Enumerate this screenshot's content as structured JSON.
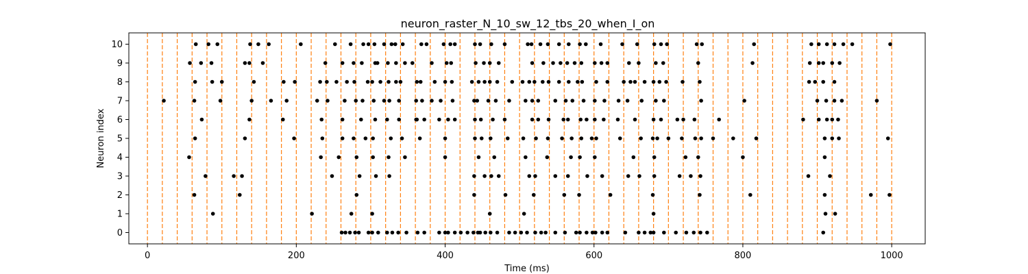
{
  "chart_data": {
    "type": "scatter",
    "title": "neuron_raster_N_10_sw_12_tbs_20_when_I_on",
    "xlabel": "Time (ms)",
    "ylabel": "Neuron index",
    "xlim": [
      -25,
      1045
    ],
    "ylim": [
      -0.6,
      10.6
    ],
    "xticks": [
      0,
      200,
      400,
      600,
      800,
      1000
    ],
    "yticks": [
      0,
      1,
      2,
      3,
      4,
      5,
      6,
      7,
      8,
      9,
      10
    ],
    "grid": false,
    "vlines": {
      "x": [
        0,
        20,
        40,
        60,
        80,
        100,
        120,
        140,
        160,
        180,
        200,
        220,
        240,
        260,
        280,
        300,
        320,
        340,
        360,
        380,
        400,
        420,
        440,
        460,
        480,
        500,
        520,
        540,
        560,
        580,
        600,
        620,
        640,
        660,
        680,
        700,
        720,
        740,
        760,
        780,
        800,
        820,
        840,
        860,
        880,
        900,
        920,
        940,
        960,
        980,
        1000
      ],
      "color": "#ff7f0e"
    },
    "marker_color": "#000000",
    "series": [
      {
        "neuron": 0,
        "x": [
          261,
          266,
          272,
          279,
          284,
          297,
          302,
          310,
          322,
          329,
          337,
          348,
          363,
          372,
          392,
          400,
          404,
          413,
          421,
          430,
          438,
          444,
          447,
          454,
          461,
          470,
          486,
          494,
          502,
          510,
          521,
          529,
          535,
          548,
          561,
          576,
          581,
          590,
          598,
          602,
          611,
          618,
          642,
          660,
          668,
          676,
          680,
          694,
          710,
          724,
          734,
          743,
          752,
          908
        ]
      },
      {
        "neuron": 1,
        "x": [
          88,
          221,
          274,
          302,
          460,
          506,
          680,
          911,
          924
        ]
      },
      {
        "neuron": 2,
        "x": [
          63,
          124,
          281,
          439,
          481,
          519,
          560,
          580,
          622,
          679,
          742,
          810,
          910,
          972,
          997
        ]
      },
      {
        "neuron": 3,
        "x": [
          78,
          116,
          127,
          248,
          285,
          307,
          325,
          439,
          453,
          462,
          472,
          513,
          521,
          548,
          565,
          591,
          611,
          646,
          661,
          681,
          715,
          730,
          743,
          888,
          917
        ]
      },
      {
        "neuron": 4,
        "x": [
          56,
          233,
          257,
          281,
          303,
          324,
          346,
          400,
          445,
          466,
          508,
          537,
          569,
          581,
          601,
          653,
          681,
          723,
          740,
          800,
          910
        ]
      },
      {
        "neuron": 5,
        "x": [
          64,
          131,
          197,
          235,
          262,
          277,
          293,
          303,
          327,
          342,
          366,
          400,
          440,
          449,
          461,
          484,
          505,
          522,
          538,
          557,
          570,
          583,
          597,
          603,
          635,
          663,
          679,
          685,
          700,
          718,
          736,
          744,
          760,
          787,
          818,
          910,
          920,
          929,
          995
        ]
      },
      {
        "neuron": 6,
        "x": [
          73,
          137,
          182,
          234,
          262,
          287,
          306,
          322,
          338,
          362,
          361,
          372,
          392,
          404,
          413,
          440,
          448,
          464,
          480,
          517,
          525,
          539,
          559,
          565,
          582,
          590,
          601,
          613,
          632,
          655,
          680,
          690,
          712,
          720,
          735,
          768,
          881,
          902,
          913,
          920,
          928
        ]
      },
      {
        "neuron": 7,
        "x": [
          22,
          63,
          98,
          140,
          166,
          187,
          228,
          242,
          265,
          280,
          289,
          304,
          318,
          325,
          338,
          361,
          369,
          382,
          394,
          410,
          439,
          443,
          458,
          468,
          486,
          508,
          517,
          525,
          548,
          562,
          571,
          586,
          601,
          614,
          633,
          645,
          664,
          683,
          694,
          744,
          802,
          900,
          912,
          923,
          933,
          980
        ]
      },
      {
        "neuron": 8,
        "x": [
          64,
          87,
          100,
          143,
          183,
          198,
          232,
          241,
          254,
          268,
          278,
          296,
          302,
          313,
          324,
          334,
          340,
          362,
          367,
          386,
          400,
          409,
          436,
          445,
          453,
          460,
          470,
          490,
          504,
          513,
          520,
          531,
          539,
          553,
          566,
          578,
          584,
          603,
          618,
          640,
          649,
          655,
          668,
          680,
          688,
          697,
          719,
          742,
          889,
          897,
          908,
          923
        ]
      },
      {
        "neuron": 9,
        "x": [
          57,
          72,
          86,
          131,
          137,
          155,
          239,
          262,
          277,
          288,
          306,
          309,
          323,
          334,
          346,
          356,
          382,
          402,
          408,
          441,
          452,
          460,
          472,
          517,
          532,
          545,
          555,
          564,
          574,
          583,
          601,
          610,
          618,
          647,
          660,
          683,
          693,
          740,
          813,
          890,
          902,
          908,
          920,
          930
        ]
      },
      {
        "neuron": 10,
        "x": [
          65,
          82,
          94,
          138,
          149,
          163,
          206,
          252,
          273,
          290,
          297,
          305,
          318,
          328,
          333,
          343,
          368,
          375,
          398,
          407,
          413,
          440,
          447,
          462,
          480,
          511,
          516,
          528,
          538,
          553,
          566,
          581,
          589,
          609,
          638,
          658,
          681,
          690,
          698,
          738,
          745,
          815,
          892,
          902,
          913,
          923,
          935,
          947,
          998
        ]
      }
    ]
  }
}
